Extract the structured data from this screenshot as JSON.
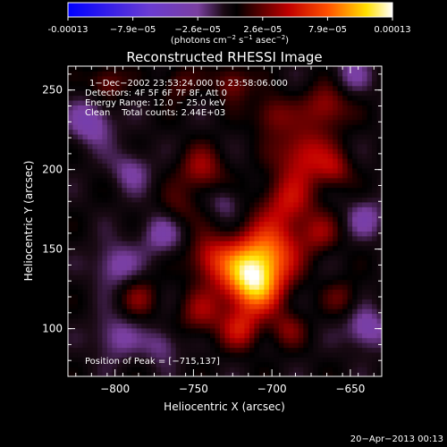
{
  "colorbar": {
    "ticks": [
      "-0.00013",
      "−7.9e−05",
      "−2.6e−05",
      "2.6e−05",
      "7.9e−05",
      "0.00013"
    ],
    "units_prefix": "(photons cm",
    "units_exp1": "−2",
    "units_mid": " s",
    "units_exp2": "−1",
    "units_mid2": " asec",
    "units_exp3": "−2",
    "units_suffix": ")",
    "colors": [
      "#0000ff",
      "#6a3cd2",
      "#7a3fa0",
      "#3a1a30",
      "#000000",
      "#ff0000",
      "#ffe000",
      "#ffffff"
    ]
  },
  "chart_data": {
    "type": "heatmap",
    "title": "Reconstructed RHESSI Image",
    "xlabel": "Heliocentric X (arcsec)",
    "ylabel": "Heliocentric Y (arcsec)",
    "xlim": [
      -830,
      -630
    ],
    "ylim": [
      70,
      265
    ],
    "xticks": [
      -800,
      -750,
      -700,
      -650
    ],
    "xtick_labels": [
      "−800",
      "−750",
      "−700",
      "−650"
    ],
    "yticks": [
      100,
      150,
      200,
      250
    ],
    "ytick_labels": [
      "100",
      "150",
      "200",
      "250"
    ],
    "annotations": [
      "1−Dec−2002 23:53:24.000 to 23:58:06.000",
      "Detectors: 4F 5F 6F 7F 8F, Att 0",
      "Energy Range: 12.0 − 25.0 keV",
      "Clean    Total counts: 2.44E+03"
    ],
    "peak_label": "Position of Peak = [−715,137]",
    "peak": [
      -715,
      137
    ],
    "value_range": [
      -0.00013,
      0.00013
    ]
  },
  "footer": {
    "date": "20−Apr−2013 00:13"
  }
}
